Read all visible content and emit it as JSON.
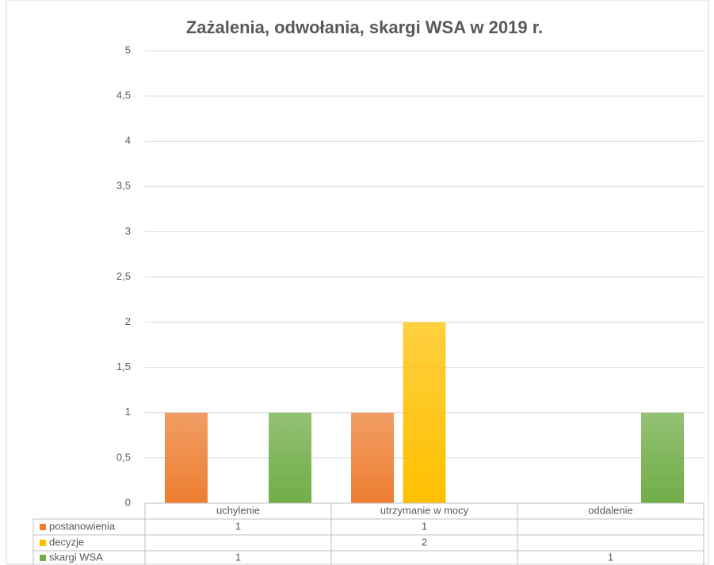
{
  "chart_data": {
    "type": "bar",
    "title": "Zażalenia, odwołania, skargi WSA w 2019 r.",
    "categories": [
      "uchylenie",
      "utrzymanie w mocy",
      "oddalenie"
    ],
    "series": [
      {
        "name": "postanowienia",
        "color": "#ed7d31",
        "values": [
          1,
          1,
          null
        ]
      },
      {
        "name": "decyzje",
        "color": "#ffc000",
        "values": [
          null,
          2,
          null
        ]
      },
      {
        "name": "skargi WSA",
        "color": "#70ad47",
        "values": [
          1,
          null,
          1
        ]
      }
    ],
    "ylim": [
      0,
      5
    ],
    "yticks": [
      0,
      {
        "value": 0.5,
        "label": "0,5"
      },
      1,
      {
        "value": 1.5,
        "label": "1,5"
      },
      2,
      {
        "value": 2.5,
        "label": "2,5"
      },
      3,
      {
        "value": 3.5,
        "label": "3,5"
      },
      4,
      {
        "value": 4.5,
        "label": "4,5"
      },
      5
    ],
    "grid": true
  }
}
